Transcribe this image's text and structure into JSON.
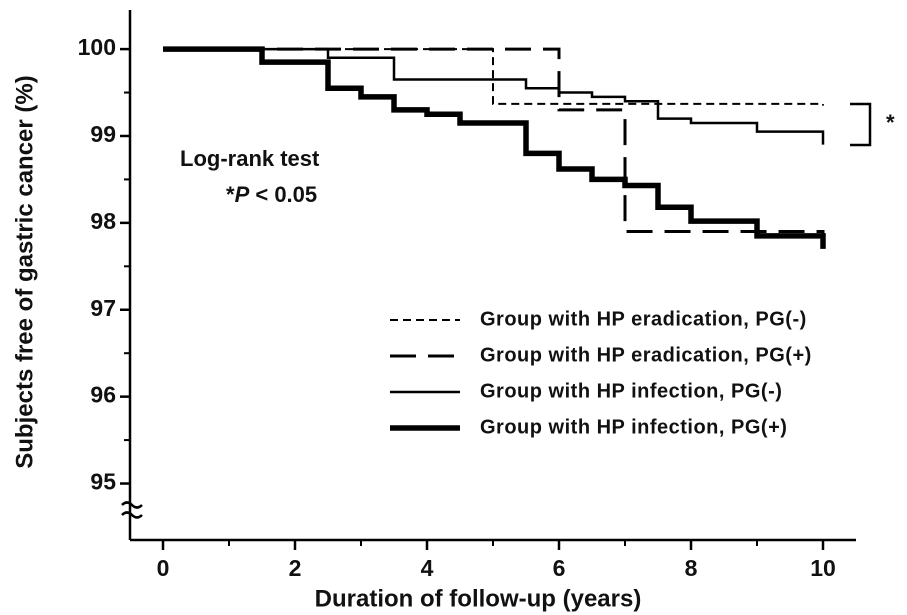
{
  "chart_data": {
    "type": "step",
    "xlabel": "Duration of follow-up (years)",
    "ylabel": "Subjects free of gastric cancer (%)",
    "xlim": [
      -0.5,
      10.5
    ],
    "xticks": [
      0,
      2,
      4,
      6,
      8,
      10
    ],
    "ylim": [
      94.35,
      100.45
    ],
    "yticks": [
      95,
      96,
      97,
      98,
      99,
      100
    ],
    "annotations": [
      "Log-rank test",
      "*",
      "P",
      " < 0.05",
      "*"
    ],
    "series": [
      {
        "name": "Group with HP eradication, PG(-)",
        "color": "#000000",
        "style": "short-dash",
        "width": 2,
        "x": [
          0,
          5,
          10
        ],
        "y": [
          100,
          99.37,
          99.35
        ]
      },
      {
        "name": "Group with HP eradication, PG(+)",
        "color": "#000000",
        "style": "long-dash",
        "width": 3,
        "x": [
          0,
          6,
          7,
          10
        ],
        "y": [
          100,
          99.3,
          97.9,
          97.85
        ]
      },
      {
        "name": "Group with HP infection, PG(-)",
        "color": "#000000",
        "style": "solid",
        "width": 2.5,
        "x": [
          0,
          2.5,
          3.5,
          5.5,
          6,
          6.5,
          7,
          7.5,
          8,
          9,
          10
        ],
        "y": [
          100,
          99.9,
          99.65,
          99.55,
          99.5,
          99.45,
          99.4,
          99.2,
          99.15,
          99.05,
          98.9
        ]
      },
      {
        "name": "Group with HP infection, PG(+)",
        "color": "#000000",
        "style": "solid",
        "width": 5.5,
        "x": [
          0,
          1.5,
          2.5,
          3,
          3.5,
          4,
          4.5,
          5.5,
          6,
          6.5,
          7,
          7.5,
          8,
          9,
          10
        ],
        "y": [
          100,
          99.85,
          99.55,
          99.45,
          99.3,
          99.25,
          99.15,
          98.8,
          98.62,
          98.5,
          98.43,
          98.18,
          98.02,
          97.85,
          97.7
        ]
      }
    ]
  }
}
